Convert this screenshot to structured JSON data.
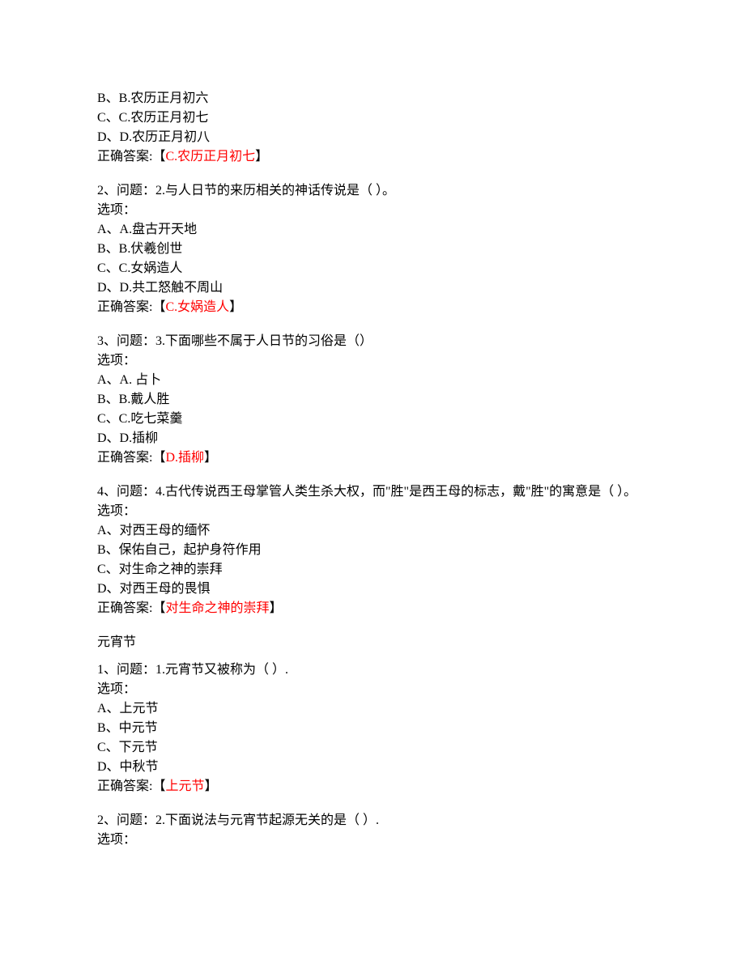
{
  "colors": {
    "text": "#000000",
    "highlight": "#ff0000",
    "background": "#ffffff"
  },
  "typography": {
    "font_family": "SimSun",
    "font_size_pt": 12,
    "line_height": 1.5
  },
  "q1_remainder": {
    "options": [
      "B、B.农历正月初六",
      "C、C.农历正月初七",
      "D、D.农历正月初八"
    ],
    "answer_prefix": "正确答案:【",
    "answer_text": "C.农历正月初七",
    "answer_suffix": "】"
  },
  "q2": {
    "question": "2、问题：2.与人日节的来历相关的神话传说是（ ）。",
    "options_label": "选项：",
    "options": [
      "A、A.盘古开天地",
      "B、B.伏羲创世",
      "C、C.女娲造人",
      "D、D.共工怒触不周山"
    ],
    "answer_prefix": "正确答案:【",
    "answer_text": "C.女娲造人",
    "answer_suffix": "】"
  },
  "q3": {
    "question": "3、问题：3.下面哪些不属于人日节的习俗是（）",
    "options_label": "选项：",
    "options": [
      "A、A. 占卜",
      "B、B.戴人胜",
      "C、C.吃七菜羹",
      "D、D.插柳"
    ],
    "answer_prefix": "正确答案:【",
    "answer_text": "D.插柳",
    "answer_suffix": "】"
  },
  "q4": {
    "question": "4、问题：4.古代传说西王母掌管人类生杀大权，而\"胜\"是西王母的标志，戴\"胜\"的寓意是（ ）。",
    "options_label": "选项：",
    "options": [
      "A、对西王母的缅怀",
      "B、保佑自己，起护身符作用",
      "C、对生命之神的崇拜",
      "D、对西王母的畏惧"
    ],
    "answer_prefix": "正确答案:【",
    "answer_text": "对生命之神的崇拜",
    "answer_suffix": "】"
  },
  "section_title": "元宵节",
  "q5": {
    "question": "1、问题：1.元宵节又被称为（ ）.",
    "options_label": "选项：",
    "options": [
      "A、上元节",
      "B、中元节",
      "C、下元节",
      "D、中秋节"
    ],
    "answer_prefix": "正确答案:【",
    "answer_text": "上元节",
    "answer_suffix": "】"
  },
  "q6": {
    "question": "2、问题：2.下面说法与元宵节起源无关的是（ ）.",
    "options_label": "选项："
  }
}
